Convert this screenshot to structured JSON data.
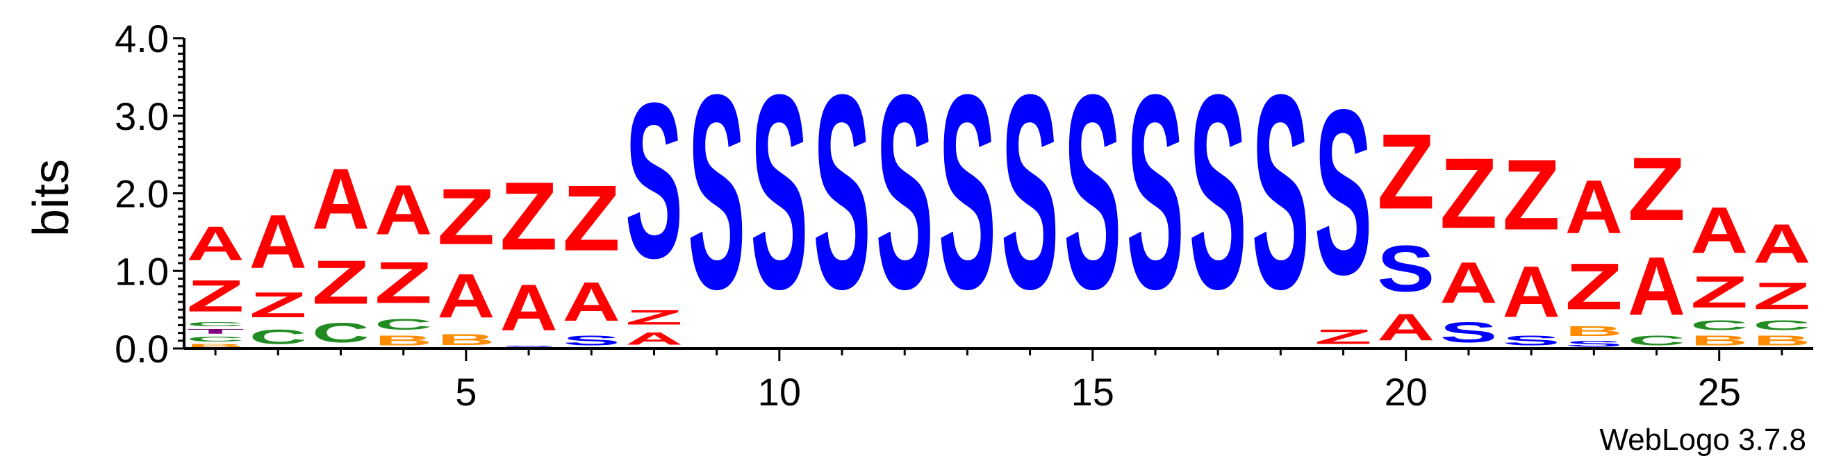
{
  "chart_data": {
    "type": "sequence-logo",
    "ylabel": "bits",
    "ylim": [
      0,
      4.0
    ],
    "yticks": [
      "0.0",
      "1.0",
      "2.0",
      "3.0",
      "4.0"
    ],
    "xlim": [
      0.5,
      26.5
    ],
    "xticks": [
      "5",
      "10",
      "15",
      "20",
      "25"
    ],
    "xtick_values": [
      5,
      10,
      15,
      20,
      25
    ],
    "colors": {
      "A": "#ff0000",
      "Z": "#ff0000",
      "S": "#0000ff",
      "C": "#228b22",
      "B": "#ff8c00",
      "T": "#800080"
    },
    "columns": [
      {
        "pos": 1,
        "stack": [
          [
            "B",
            0.07
          ],
          [
            "C",
            0.1
          ],
          [
            "T",
            0.1
          ],
          [
            "C",
            0.08
          ],
          [
            "Z",
            0.65
          ],
          [
            "A",
            0.7
          ]
        ]
      },
      {
        "pos": 2,
        "stack": [
          [
            "C",
            0.3
          ],
          [
            "Z",
            0.52
          ],
          [
            "A",
            1.1
          ]
        ]
      },
      {
        "pos": 3,
        "stack": [
          [
            "C",
            0.4
          ],
          [
            "Z",
            0.9
          ],
          [
            "A",
            1.25
          ]
        ]
      },
      {
        "pos": 4,
        "stack": [
          [
            "B",
            0.2
          ],
          [
            "C",
            0.22
          ],
          [
            "Z",
            0.85
          ],
          [
            "A",
            1.02
          ]
        ]
      },
      {
        "pos": 5,
        "stack": [
          [
            "B",
            0.22
          ],
          [
            "A",
            0.9
          ],
          [
            "Z",
            1.15
          ]
        ]
      },
      {
        "pos": 6,
        "stack": [
          [
            "S",
            0.05
          ],
          [
            "A",
            0.95
          ],
          [
            "Z",
            1.4
          ]
        ]
      },
      {
        "pos": 7,
        "stack": [
          [
            "S",
            0.2
          ],
          [
            "A",
            0.8
          ],
          [
            "Z",
            1.35
          ]
        ]
      },
      {
        "pos": 8,
        "stack": [
          [
            "A",
            0.25
          ],
          [
            "Z",
            0.3
          ],
          [
            "S",
            3.2
          ]
        ]
      },
      {
        "pos": 9,
        "stack": [
          [
            "S",
            4.0
          ]
        ]
      },
      {
        "pos": 10,
        "stack": [
          [
            "S",
            4.0
          ]
        ]
      },
      {
        "pos": 11,
        "stack": [
          [
            "S",
            4.0
          ]
        ]
      },
      {
        "pos": 12,
        "stack": [
          [
            "S",
            4.0
          ]
        ]
      },
      {
        "pos": 13,
        "stack": [
          [
            "S",
            4.0
          ]
        ]
      },
      {
        "pos": 14,
        "stack": [
          [
            "S",
            4.0
          ]
        ]
      },
      {
        "pos": 15,
        "stack": [
          [
            "S",
            4.0
          ]
        ]
      },
      {
        "pos": 16,
        "stack": [
          [
            "S",
            4.0
          ]
        ]
      },
      {
        "pos": 17,
        "stack": [
          [
            "S",
            4.0
          ]
        ]
      },
      {
        "pos": 18,
        "stack": [
          [
            "S",
            4.0
          ]
        ]
      },
      {
        "pos": 19,
        "stack": [
          [
            "Z",
            0.3
          ],
          [
            "S",
            3.4
          ]
        ]
      },
      {
        "pos": 20,
        "stack": [
          [
            "A",
            0.55
          ],
          [
            "S",
            0.95
          ],
          [
            "Z",
            1.55
          ]
        ]
      },
      {
        "pos": 21,
        "stack": [
          [
            "S",
            0.42
          ],
          [
            "A",
            0.85
          ],
          [
            "Z",
            1.45
          ]
        ]
      },
      {
        "pos": 22,
        "stack": [
          [
            "S",
            0.2
          ],
          [
            "A",
            1.05
          ],
          [
            "Z",
            1.45
          ]
        ]
      },
      {
        "pos": 23,
        "stack": [
          [
            "S",
            0.12
          ],
          [
            "B",
            0.2
          ],
          [
            "Z",
            0.95
          ],
          [
            "A",
            1.1
          ]
        ]
      },
      {
        "pos": 24,
        "stack": [
          [
            "C",
            0.2
          ],
          [
            "A",
            1.2
          ],
          [
            "Z",
            1.3
          ]
        ]
      },
      {
        "pos": 25,
        "stack": [
          [
            "B",
            0.2
          ],
          [
            "C",
            0.2
          ],
          [
            "Z",
            0.65
          ],
          [
            "A",
            0.95
          ]
        ]
      },
      {
        "pos": 26,
        "stack": [
          [
            "B",
            0.2
          ],
          [
            "C",
            0.2
          ],
          [
            "Z",
            0.55
          ],
          [
            "A",
            0.8
          ]
        ]
      }
    ]
  },
  "footer": {
    "credit": "WebLogo 3.7.8"
  }
}
